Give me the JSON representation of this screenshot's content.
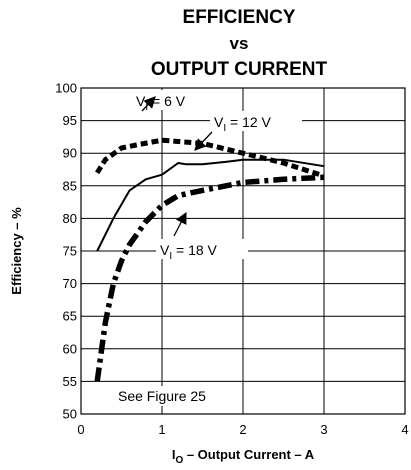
{
  "chart_data": {
    "type": "line",
    "title_lines": [
      "EFFICIENCY",
      "vs",
      "OUTPUT CURRENT"
    ],
    "xlabel_main": "I",
    "xlabel_sub": "O",
    "xlabel_rest": " – Output Current – A",
    "ylabel": "Efficiency – %",
    "xlim": [
      0,
      4
    ],
    "ylim": [
      50,
      100
    ],
    "xticks": [
      0,
      1,
      2,
      3,
      4
    ],
    "yticks": [
      50,
      55,
      60,
      65,
      70,
      75,
      80,
      85,
      90,
      95,
      100
    ],
    "grid": true,
    "note": "See Figure 25",
    "series": [
      {
        "name": "VI = 6 V",
        "label_main": "V",
        "label_sub": "I",
        "label_rest": " = 6 V",
        "style": "dotted",
        "x": [
          0.2,
          0.3,
          0.5,
          0.7,
          1.0,
          1.2,
          1.5,
          2.0,
          2.5,
          3.0
        ],
        "y": [
          87,
          89,
          90.8,
          91.3,
          92,
          91.8,
          91.5,
          90,
          88.5,
          86.5
        ]
      },
      {
        "name": "VI = 12 V",
        "label_main": "V",
        "label_sub": "I",
        "label_rest": " = 12 V",
        "style": "solid",
        "x": [
          0.2,
          0.4,
          0.6,
          0.8,
          1.0,
          1.2,
          1.3,
          1.5,
          1.8,
          2.0,
          2.5,
          3.0
        ],
        "y": [
          75,
          80,
          84.3,
          86,
          86.7,
          88.5,
          88.3,
          88.3,
          88.7,
          89,
          89,
          88
        ],
        "arrow": {
          "x": 1.3,
          "y": 88.3
        }
      },
      {
        "name": "VI = 18 V",
        "label_main": "V",
        "label_sub": "I",
        "label_rest": " = 18 V",
        "style": "dashdot",
        "x": [
          0.2,
          0.3,
          0.4,
          0.5,
          0.6,
          0.8,
          1.0,
          1.2,
          1.5,
          2.0,
          2.5,
          3.0
        ],
        "y": [
          55,
          64,
          70,
          73.5,
          76,
          79.5,
          82,
          83.5,
          84.3,
          85.5,
          86,
          86.3
        ]
      }
    ]
  }
}
